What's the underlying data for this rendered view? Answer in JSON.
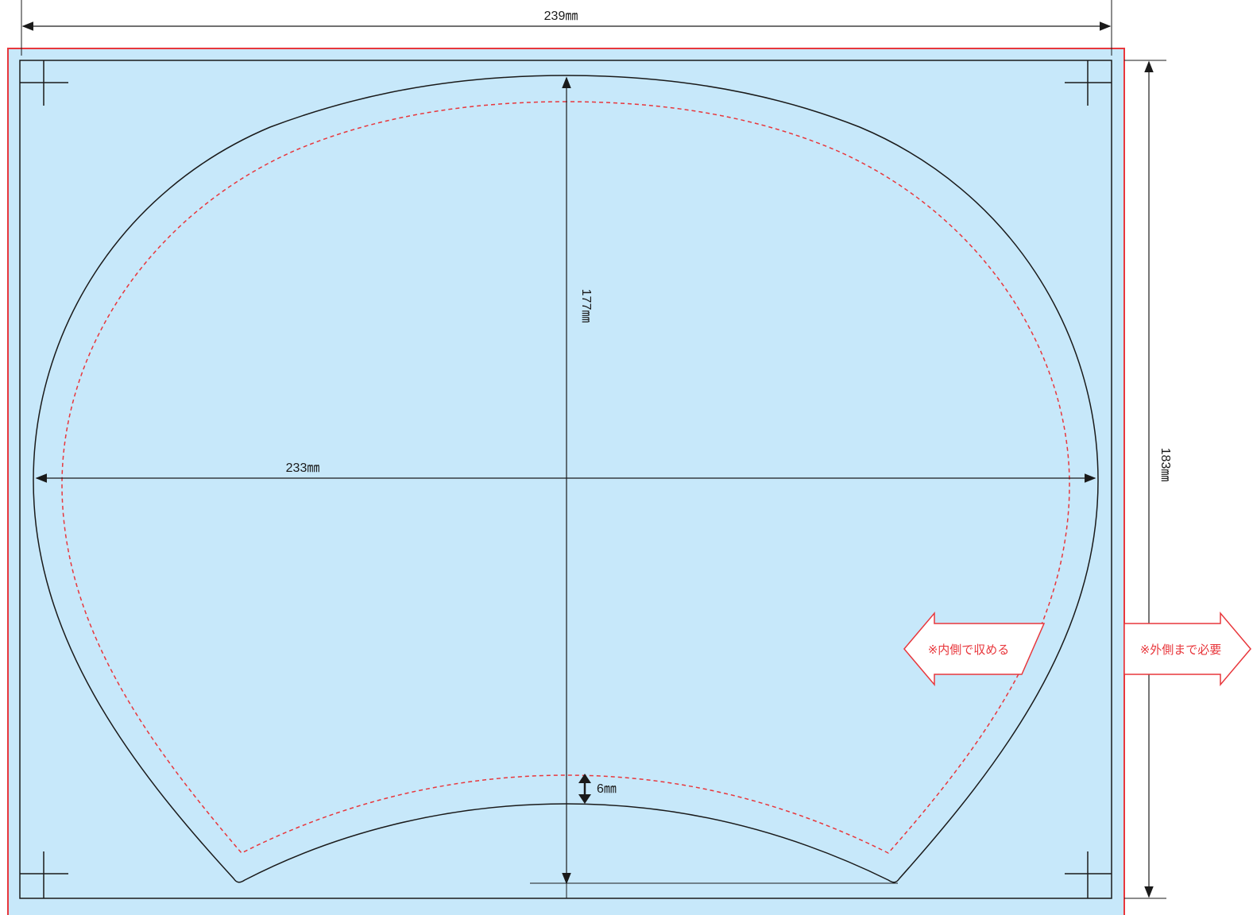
{
  "colors": {
    "background_fill": "#c7e8fa",
    "bleed_border": "#e8373c",
    "outline": "#1a1a1a",
    "safe_line": "#e8373c",
    "callout_fill": "#ffffff",
    "callout_stroke": "#e8373c"
  },
  "dimensions": {
    "overall_width": "239㎜",
    "overall_height": "183㎜",
    "shape_width": "233㎜",
    "shape_height": "177㎜",
    "margin": "6㎜"
  },
  "notes": {
    "inside": "※内側で収める",
    "outside": "※外側まで必要"
  },
  "icons": {
    "crop_marks": "crosshair-crop-mark",
    "arrows": "dimension-arrow"
  }
}
